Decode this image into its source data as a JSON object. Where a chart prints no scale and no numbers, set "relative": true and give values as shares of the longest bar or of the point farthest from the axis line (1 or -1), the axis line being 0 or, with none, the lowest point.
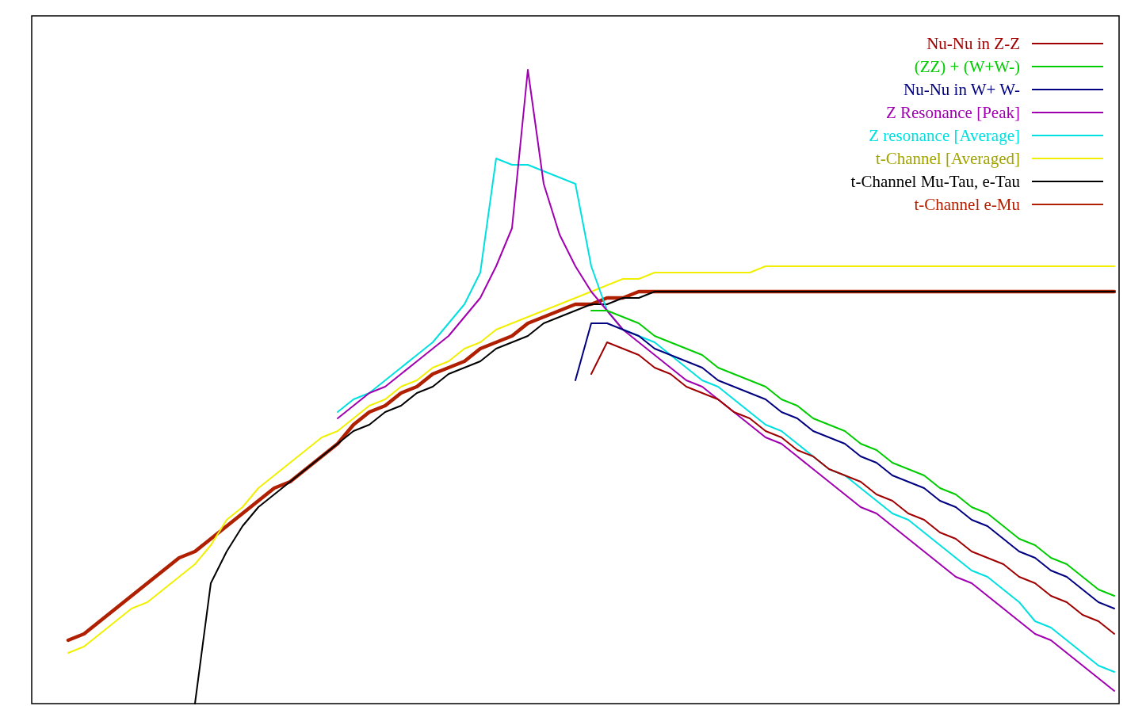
{
  "chart_data": {
    "type": "line",
    "relative": true,
    "legend": "top right",
    "categories": [
      null,
      null,
      null,
      null,
      null,
      null,
      null,
      null,
      null,
      null,
      null,
      null,
      null,
      null,
      null,
      null,
      null,
      null,
      null,
      null,
      null,
      null,
      null,
      null,
      null,
      null,
      null,
      null,
      null,
      null,
      null,
      null,
      null,
      null,
      null,
      null,
      null,
      null,
      null,
      null,
      null,
      null,
      null,
      null,
      null,
      null,
      null,
      null,
      null,
      null,
      null,
      null,
      null,
      null,
      null,
      null,
      null,
      null,
      null,
      null,
      null,
      null,
      null,
      null,
      null,
      null,
      null
    ],
    "series": [
      {
        "name": "Nu-Nu in Z-Z",
        "color": "#a00000",
        "values": [
          null,
          null,
          null,
          null,
          null,
          null,
          null,
          null,
          null,
          null,
          null,
          null,
          null,
          null,
          null,
          null,
          null,
          null,
          null,
          null,
          null,
          null,
          null,
          null,
          null,
          null,
          null,
          null,
          null,
          null,
          null,
          null,
          null,
          0.52,
          0.57,
          0.56,
          0.55,
          0.53,
          0.52,
          0.5,
          0.49,
          0.48,
          0.46,
          0.45,
          0.43,
          0.42,
          0.4,
          0.39,
          0.37,
          0.36,
          0.35,
          0.33,
          0.32,
          0.3,
          0.29,
          0.27,
          0.26,
          0.24,
          0.23,
          0.22,
          0.2,
          0.19,
          0.17,
          0.16,
          0.14,
          0.13,
          0.11
        ]
      },
      {
        "name": "(ZZ) + (W+W-)",
        "color": "#00cc00",
        "values": [
          null,
          null,
          null,
          null,
          null,
          null,
          null,
          null,
          null,
          null,
          null,
          null,
          null,
          null,
          null,
          null,
          null,
          null,
          null,
          null,
          null,
          null,
          null,
          null,
          null,
          null,
          null,
          null,
          null,
          null,
          null,
          null,
          null,
          0.62,
          0.62,
          0.61,
          0.6,
          0.58,
          0.57,
          0.56,
          0.55,
          0.53,
          0.52,
          0.51,
          0.5,
          0.48,
          0.47,
          0.45,
          0.44,
          0.43,
          0.41,
          0.4,
          0.38,
          0.37,
          0.36,
          0.34,
          0.33,
          0.31,
          0.3,
          0.28,
          0.26,
          0.25,
          0.23,
          0.22,
          0.2,
          0.18,
          0.17
        ]
      },
      {
        "name": "Nu-Nu in W+ W-",
        "color": "#000080",
        "values": [
          null,
          null,
          null,
          null,
          null,
          null,
          null,
          null,
          null,
          null,
          null,
          null,
          null,
          null,
          null,
          null,
          null,
          null,
          null,
          null,
          null,
          null,
          null,
          null,
          null,
          null,
          null,
          null,
          null,
          null,
          null,
          null,
          0.51,
          0.6,
          0.6,
          0.59,
          0.58,
          0.56,
          0.55,
          0.54,
          0.53,
          0.51,
          0.5,
          0.49,
          0.48,
          0.46,
          0.45,
          0.43,
          0.42,
          0.41,
          0.39,
          0.38,
          0.36,
          0.35,
          0.34,
          0.32,
          0.31,
          0.29,
          0.28,
          0.26,
          0.24,
          0.23,
          0.21,
          0.2,
          0.18,
          0.16,
          0.15
        ]
      },
      {
        "name": "Z Resonance [Peak]",
        "color": "#a000b0",
        "values": [
          null,
          null,
          null,
          null,
          null,
          null,
          null,
          null,
          null,
          null,
          null,
          null,
          null,
          null,
          null,
          null,
          null,
          0.45,
          0.47,
          0.49,
          0.5,
          0.52,
          0.54,
          0.56,
          0.58,
          0.61,
          0.64,
          0.69,
          0.75,
          1,
          0.82,
          0.74,
          0.69,
          0.65,
          0.62,
          0.59,
          0.57,
          0.55,
          0.53,
          0.51,
          0.5,
          0.48,
          0.46,
          0.44,
          0.42,
          0.41,
          0.39,
          0.37,
          0.35,
          0.33,
          0.31,
          0.3,
          0.28,
          0.26,
          0.24,
          0.22,
          0.2,
          0.19,
          0.17,
          0.15,
          0.13,
          0.11,
          0.1,
          0.08,
          0.06,
          0.04,
          0.02
        ]
      },
      {
        "name": "Z resonance [Average]",
        "color": "#00e0e0",
        "values": [
          null,
          null,
          null,
          null,
          null,
          null,
          null,
          null,
          null,
          null,
          null,
          null,
          null,
          null,
          null,
          null,
          null,
          0.46,
          0.48,
          0.49,
          0.51,
          0.53,
          0.55,
          0.57,
          0.6,
          0.63,
          0.68,
          0.86,
          0.85,
          0.85,
          0.84,
          0.83,
          0.82,
          0.69,
          0.62,
          0.59,
          0.58,
          0.57,
          0.55,
          0.53,
          0.51,
          0.5,
          0.48,
          0.46,
          0.44,
          0.43,
          0.41,
          0.39,
          0.37,
          0.36,
          0.34,
          0.32,
          0.3,
          0.29,
          0.27,
          0.25,
          0.23,
          0.21,
          0.2,
          0.18,
          0.16,
          0.13,
          0.12,
          0.1,
          0.08,
          0.06,
          0.05
        ]
      },
      {
        "name": "t-Channel [Averaged]",
        "color": "#f0f000",
        "values": [
          0.08,
          0.09,
          0.11,
          0.13,
          0.15,
          0.16,
          0.18,
          0.2,
          0.22,
          0.25,
          0.29,
          0.31,
          0.34,
          0.36,
          0.38,
          0.4,
          0.42,
          0.43,
          0.45,
          0.47,
          0.48,
          0.5,
          0.51,
          0.53,
          0.54,
          0.56,
          0.57,
          0.59,
          0.6,
          0.61,
          0.62,
          0.63,
          0.64,
          0.65,
          0.66,
          0.67,
          0.67,
          0.68,
          0.68,
          0.68,
          0.68,
          0.68,
          0.68,
          0.68,
          0.69,
          0.69,
          0.69,
          0.69,
          0.69,
          0.69,
          0.69,
          0.69,
          0.69,
          0.69,
          0.69,
          0.69,
          0.69,
          0.69,
          0.69,
          0.69,
          0.69,
          0.69,
          0.69,
          0.69,
          0.69,
          0.69,
          0.69
        ]
      },
      {
        "name": "t-Channel Mu-Tau, e-Tau",
        "color": "#000000",
        "values": [
          null,
          null,
          null,
          null,
          null,
          null,
          null,
          null,
          0,
          0.19,
          0.24,
          0.28,
          0.31,
          0.33,
          0.35,
          0.37,
          0.39,
          0.41,
          0.43,
          0.44,
          0.46,
          0.47,
          0.49,
          0.5,
          0.52,
          0.53,
          0.54,
          0.56,
          0.57,
          0.58,
          0.6,
          0.61,
          0.62,
          0.63,
          0.63,
          0.64,
          0.64,
          0.65,
          0.65,
          0.65,
          0.65,
          0.65,
          0.65,
          0.65,
          0.65,
          0.65,
          0.65,
          0.65,
          0.65,
          0.65,
          0.65,
          0.65,
          0.65,
          0.65,
          0.65,
          0.65,
          0.65,
          0.65,
          0.65,
          0.65,
          0.65,
          0.65,
          0.65,
          0.65,
          0.65,
          0.65,
          0.65
        ]
      },
      {
        "name": "t-Channel e-Mu",
        "color": "#b02000",
        "values": [
          0.1,
          0.11,
          0.13,
          0.15,
          0.17,
          0.19,
          0.21,
          0.23,
          0.24,
          0.26,
          0.28,
          0.3,
          0.32,
          0.34,
          0.35,
          0.37,
          0.39,
          0.41,
          0.44,
          0.46,
          0.47,
          0.49,
          0.5,
          0.52,
          0.53,
          0.54,
          0.56,
          0.57,
          0.58,
          0.6,
          0.61,
          0.62,
          0.63,
          0.63,
          0.64,
          0.64,
          0.65,
          0.65,
          0.65,
          0.65,
          0.65,
          0.65,
          0.65,
          0.65,
          0.65,
          0.65,
          0.65,
          0.65,
          0.65,
          0.65,
          0.65,
          0.65,
          0.65,
          0.65,
          0.65,
          0.65,
          0.65,
          0.65,
          0.65,
          0.65,
          0.65,
          0.65,
          0.65,
          0.65,
          0.65,
          0.65,
          0.65
        ]
      }
    ]
  }
}
